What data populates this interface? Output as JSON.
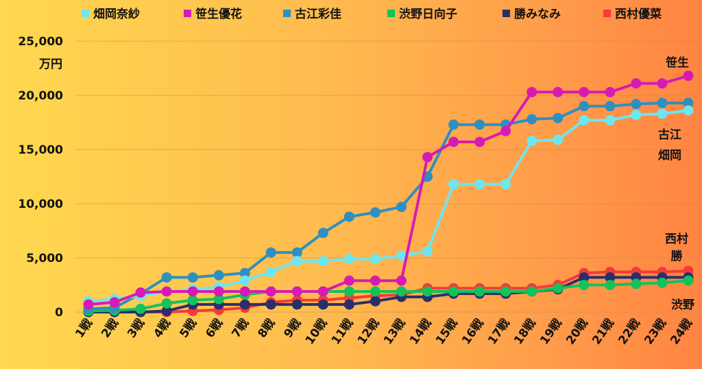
{
  "chart_data": {
    "type": "line",
    "ylabel": "万円",
    "ylim": [
      0,
      25000
    ],
    "yticks": [
      {
        "value": 0,
        "label": "0"
      },
      {
        "value": 5000,
        "label": "5,000"
      },
      {
        "value": 10000,
        "label": "10,000"
      },
      {
        "value": 15000,
        "label": "15,000"
      },
      {
        "value": 20000,
        "label": "20,000"
      },
      {
        "value": 25000,
        "label": "25,000"
      }
    ],
    "categories": [
      "1戦",
      "2戦",
      "3戦",
      "4戦",
      "5戦",
      "6戦",
      "7戦",
      "8戦",
      "9戦",
      "10戦",
      "11戦",
      "12戦",
      "13戦",
      "14戦",
      "15戦",
      "16戦",
      "17戦",
      "18戦",
      "19戦",
      "20戦",
      "21戦",
      "22戦",
      "23戦",
      "24戦"
    ],
    "grid": true,
    "legend_position": "top",
    "series": [
      {
        "name": "畑岡奈紗",
        "color": "#6ee6f0",
        "values": [
          1000,
          1200,
          1500,
          1900,
          2100,
          2300,
          2900,
          3700,
          4700,
          4700,
          4900,
          4900,
          5200,
          5600,
          11800,
          11800,
          11800,
          15800,
          15900,
          17700,
          17700,
          18200,
          18300,
          18600
        ]
      },
      {
        "name": "笹生優花",
        "color": "#d81ab4",
        "values": [
          700,
          900,
          1800,
          1900,
          1900,
          1900,
          1900,
          1900,
          1900,
          1900,
          2900,
          2900,
          2900,
          14300,
          15700,
          15700,
          16700,
          20300,
          20300,
          20300,
          20300,
          21100,
          21100,
          21800
        ]
      },
      {
        "name": "古江彩佳",
        "color": "#2f8fbf",
        "values": [
          300,
          400,
          1700,
          3200,
          3200,
          3400,
          3600,
          5500,
          5500,
          7300,
          8800,
          9200,
          9700,
          12500,
          17300,
          17300,
          17300,
          17800,
          17900,
          19000,
          19000,
          19200,
          19300,
          19300
        ]
      },
      {
        "name": "渋野日向子",
        "color": "#12c25a",
        "values": [
          100,
          150,
          300,
          800,
          1100,
          1200,
          1600,
          1900,
          1900,
          1900,
          1900,
          1900,
          1900,
          1900,
          1900,
          1900,
          1900,
          1900,
          2200,
          2500,
          2500,
          2600,
          2700,
          2900
        ]
      },
      {
        "name": "勝みなみ",
        "color": "#2a2f6b",
        "values": [
          0,
          0,
          0,
          100,
          700,
          700,
          700,
          700,
          700,
          700,
          700,
          1000,
          1400,
          1400,
          1700,
          1700,
          1700,
          1900,
          2100,
          3200,
          3200,
          3200,
          3200,
          3200
        ]
      },
      {
        "name": "西村優菜",
        "color": "#f43a3a",
        "values": [
          0,
          0,
          0,
          0,
          100,
          200,
          400,
          900,
          1100,
          1100,
          1300,
          1500,
          1600,
          2200,
          2200,
          2200,
          2200,
          2200,
          2500,
          3600,
          3700,
          3700,
          3700,
          3800
        ]
      }
    ],
    "annotations": [
      {
        "text": "笹生"
      },
      {
        "text": "古江"
      },
      {
        "text": "畑岡"
      },
      {
        "text": "西村"
      },
      {
        "text": "勝"
      },
      {
        "text": "渋野"
      }
    ]
  }
}
